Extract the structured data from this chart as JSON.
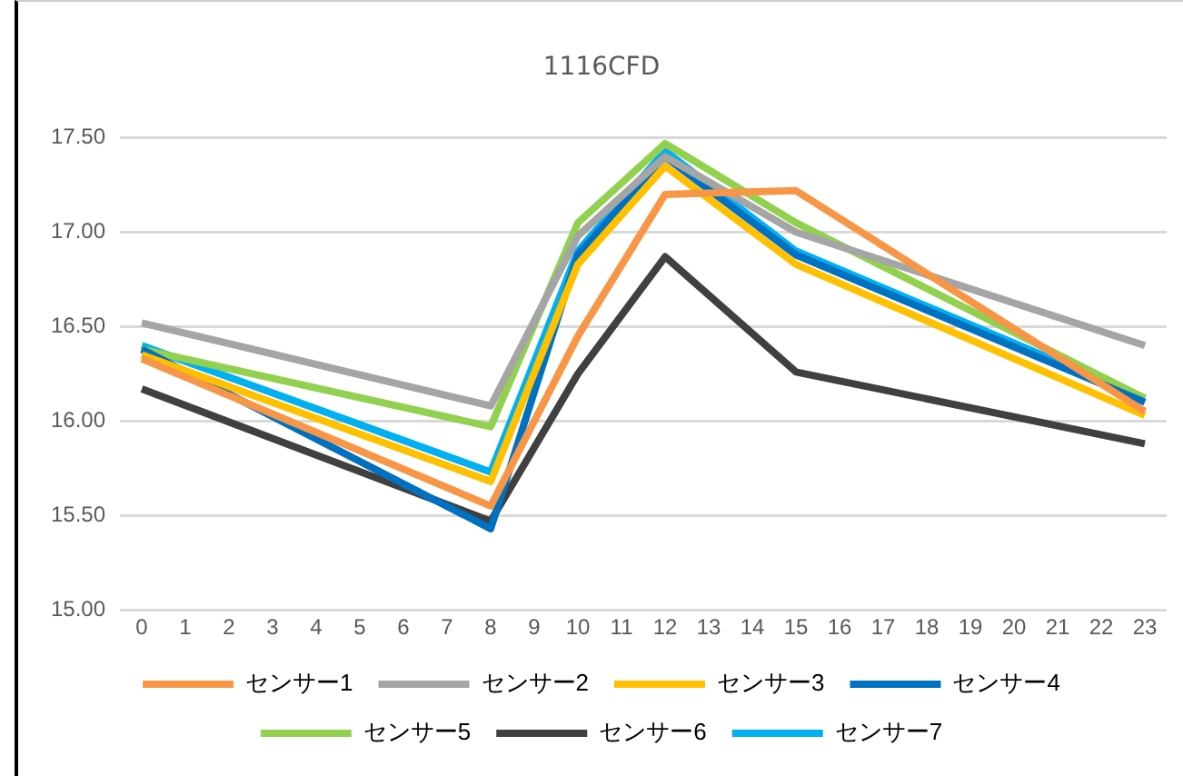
{
  "chart_data": {
    "type": "line",
    "title": "1116CFD",
    "x": [
      0,
      8,
      10,
      12,
      15,
      23
    ],
    "xlim": [
      -0.5,
      23.5
    ],
    "xticks": [
      0,
      1,
      2,
      3,
      4,
      5,
      6,
      7,
      8,
      9,
      10,
      11,
      12,
      13,
      14,
      15,
      16,
      17,
      18,
      19,
      20,
      21,
      22,
      23
    ],
    "ylim": [
      15,
      17.5
    ],
    "yticks": [
      {
        "value": 15,
        "label": "15.00"
      },
      {
        "value": 15.5,
        "label": "15.50"
      },
      {
        "value": 16,
        "label": "16.00"
      },
      {
        "value": 16.5,
        "label": "16.50"
      },
      {
        "value": 17,
        "label": "17.00"
      },
      {
        "value": 17.5,
        "label": "17.50"
      }
    ],
    "grid": "y",
    "legend": "bottom",
    "marker": "none",
    "line_style": "solid",
    "series": [
      {
        "name": "センサー1",
        "color": "#f79646",
        "values": [
          16.33,
          15.55,
          16.45,
          17.2,
          17.22,
          16.05
        ]
      },
      {
        "name": "センサー2",
        "color": "#a5a5a5",
        "values": [
          16.52,
          16.08,
          16.98,
          17.4,
          17.0,
          16.4
        ]
      },
      {
        "name": "センサー3",
        "color": "#ffc000",
        "values": [
          16.35,
          15.68,
          16.83,
          17.35,
          16.83,
          16.03
        ]
      },
      {
        "name": "センサー4",
        "color": "#0070c0",
        "values": [
          16.38,
          15.43,
          16.88,
          17.4,
          16.88,
          16.1
        ]
      },
      {
        "name": "センサー5",
        "color": "#92d050",
        "values": [
          16.38,
          15.97,
          17.05,
          17.47,
          17.05,
          16.12
        ]
      },
      {
        "name": "センサー6",
        "color": "#404040",
        "values": [
          16.17,
          15.47,
          16.25,
          16.87,
          16.26,
          15.88
        ]
      },
      {
        "name": "センサー7",
        "color": "#00b0f0",
        "values": [
          16.4,
          15.73,
          16.9,
          17.43,
          16.9,
          16.12
        ]
      }
    ]
  }
}
